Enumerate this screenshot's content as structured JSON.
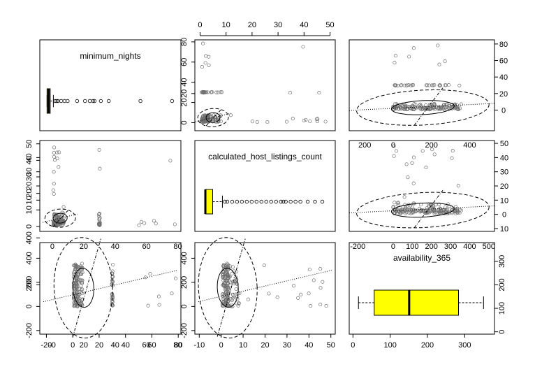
{
  "chart_data": {
    "type": "scatter-matrix",
    "variables": [
      "minimum_nights",
      "calculated_host_listings_count",
      "availability_365"
    ],
    "diagonal": [
      {
        "name": "minimum_nights",
        "type": "boxplot",
        "q1": 1,
        "median": 2,
        "q3": 3,
        "whisker_low": 1,
        "whisker_high": 5,
        "outliers": [
          6,
          7,
          8,
          10,
          12,
          14,
          20,
          25,
          28,
          30,
          31,
          35,
          40,
          60,
          80
        ],
        "axis_range": [
          0,
          82
        ],
        "fill": "#ffff00"
      },
      {
        "name": "calculated_host_listings_count",
        "type": "boxplot",
        "q1": 1,
        "median": 1,
        "q3": 4,
        "whisker_low": 1,
        "whisker_high": 8,
        "outliers": [
          9,
          10,
          12,
          14,
          16,
          18,
          20,
          22,
          24,
          26,
          28,
          30,
          32,
          33,
          34,
          36,
          38,
          40,
          43,
          46,
          49
        ],
        "axis_range": [
          -1,
          52
        ],
        "fill": "#ffff00"
      },
      {
        "name": "availability_365",
        "type": "boxplot",
        "q1": 46,
        "median": 148,
        "q3": 292,
        "whisker_low": 0,
        "whisker_high": 365,
        "outliers": [],
        "axis_range": [
          -10,
          380
        ],
        "fill": "#ffff00"
      }
    ],
    "axes": {
      "top_panel2": {
        "range": [
          -2,
          52
        ],
        "ticks": [
          "0",
          "10",
          "20",
          "30",
          "40",
          "50"
        ]
      },
      "top_panel3_ytick_labels": [
        "0",
        "20",
        "40",
        "60",
        "80"
      ],
      "right_row2": {
        "range": [
          -12,
          52
        ],
        "ticks": [
          "10",
          "0",
          "10",
          "20",
          "30",
          "40",
          "50"
        ]
      },
      "right_row3": {
        "range": [
          -10,
          380
        ],
        "ticks": [
          "0",
          "100",
          "200",
          "300"
        ]
      },
      "between_row2_panel2_3_xtick_labels": [
        "200",
        "0",
        "200",
        "400"
      ],
      "between_row3_panel2_3_xtick_labels": [
        "-200",
        "0",
        "100",
        "200",
        "300",
        "400",
        "500"
      ],
      "bottom_panel1_xtick_labels": [
        "-20",
        "0",
        "20",
        "40",
        "60",
        "80"
      ],
      "bottom_panel1_overlap_xtick_labels": [
        "-0",
        "20",
        "40",
        "60",
        "80"
      ],
      "bottom_panel2": {
        "range": [
          -12,
          52
        ],
        "ticks": [
          "-10",
          "0",
          "10",
          "20",
          "30",
          "40",
          "50"
        ]
      },
      "bottom_panel3": {
        "range": [
          -10,
          380
        ],
        "ticks": [
          "0",
          "100",
          "200",
          "300"
        ]
      },
      "left_row1_ytick_labels": [
        "0",
        "20",
        "40",
        "60",
        "80"
      ],
      "left_row1_overlap_ytick_labels": [
        "20"
      ],
      "left_row2_ytick_labels": [
        "0",
        "10",
        "20",
        "30",
        "40",
        "50"
      ],
      "left_row2_overlap_ytick_labels": [
        "10",
        "20",
        "30",
        "40"
      ],
      "left_row3_ytick_labels": [
        "-200",
        "0",
        "200",
        "400"
      ],
      "left_row3_overlap_ytick_labels": [
        "200",
        "400"
      ]
    },
    "scatter_panels": [
      {
        "row": 1,
        "col": 2,
        "x_var": "calculated_host_listings_count",
        "y_var": "minimum_nights",
        "x_range": [
          -2,
          52
        ],
        "y_range": [
          -8,
          82
        ],
        "center": [
          5,
          5
        ]
      },
      {
        "row": 1,
        "col": 3,
        "x_var": "availability_365",
        "y_var": "minimum_nights",
        "x_range": [
          -230,
          530
        ],
        "y_range": [
          -25,
          85
        ],
        "center": [
          155,
          3
        ]
      },
      {
        "row": 2,
        "col": 1,
        "x_var": "minimum_nights",
        "y_var": "calculated_host_listings_count",
        "x_range": [
          -8,
          82
        ],
        "y_range": [
          -3,
          52
        ],
        "center": [
          5,
          5
        ]
      },
      {
        "row": 2,
        "col": 3,
        "x_var": "availability_365",
        "y_var": "calculated_host_listings_count",
        "x_range": [
          -230,
          530
        ],
        "y_range": [
          -12,
          52
        ],
        "center": [
          155,
          3
        ]
      },
      {
        "row": 3,
        "col": 1,
        "x_var": "minimum_nights",
        "y_var": "availability_365",
        "x_range": [
          -25,
          82
        ],
        "y_range": [
          -230,
          530
        ],
        "center": [
          8,
          155
        ]
      },
      {
        "row": 3,
        "col": 2,
        "x_var": "calculated_host_listings_count",
        "y_var": "availability_365",
        "x_range": [
          -12,
          52
        ],
        "y_range": [
          -230,
          530
        ],
        "center": [
          3,
          155
        ]
      }
    ],
    "ellipse_levels": [
      "0.5",
      "0.95"
    ],
    "point_color": "#6e6e6e",
    "box_fill": "#ffff00"
  }
}
